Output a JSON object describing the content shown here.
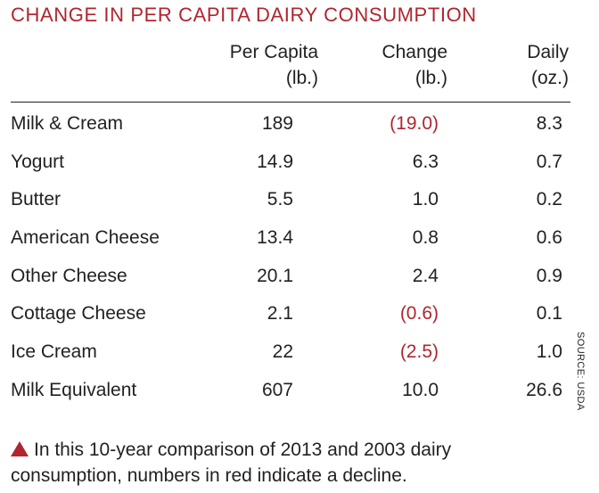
{
  "chart_data": {
    "type": "table",
    "title": "CHANGE IN PER CAPITA DAIRY CONSUMPTION",
    "columns": [
      {
        "label_line1": "Per Capita",
        "label_line2": "(lb.)"
      },
      {
        "label_line1": "Change",
        "label_line2": "(lb.)"
      },
      {
        "label_line1": "Daily",
        "label_line2": "(oz.)"
      }
    ],
    "rows": [
      {
        "name": "Milk & Cream",
        "per_capita": "189",
        "change": "(19.0)",
        "daily": "8.3",
        "change_negative": true
      },
      {
        "name": "Yogurt",
        "per_capita": "14.9",
        "change": "6.3",
        "daily": "0.7",
        "change_negative": false
      },
      {
        "name": "Butter",
        "per_capita": "5.5",
        "change": "1.0",
        "daily": "0.2",
        "change_negative": false
      },
      {
        "name": "American Cheese",
        "per_capita": "13.4",
        "change": "0.8",
        "daily": "0.6",
        "change_negative": false
      },
      {
        "name": "Other Cheese",
        "per_capita": "20.1",
        "change": "2.4",
        "daily": "0.9",
        "change_negative": false
      },
      {
        "name": "Cottage Cheese",
        "per_capita": "2.1",
        "change": "(0.6)",
        "daily": "0.1",
        "change_negative": true
      },
      {
        "name": "Ice Cream",
        "per_capita": "22",
        "change": "(2.5)",
        "daily": "1.0",
        "change_negative": true
      },
      {
        "name": "Milk Equivalent",
        "per_capita": "607",
        "change": "10.0",
        "daily": "26.6",
        "change_negative": false
      }
    ],
    "source": "SOURCE: USDA",
    "note": "In this 10-year comparison of 2013 and 2003 dairy consumption, numbers in red indicate a decline.",
    "colors": {
      "accent": "#b1252f",
      "text": "#231f20"
    }
  }
}
